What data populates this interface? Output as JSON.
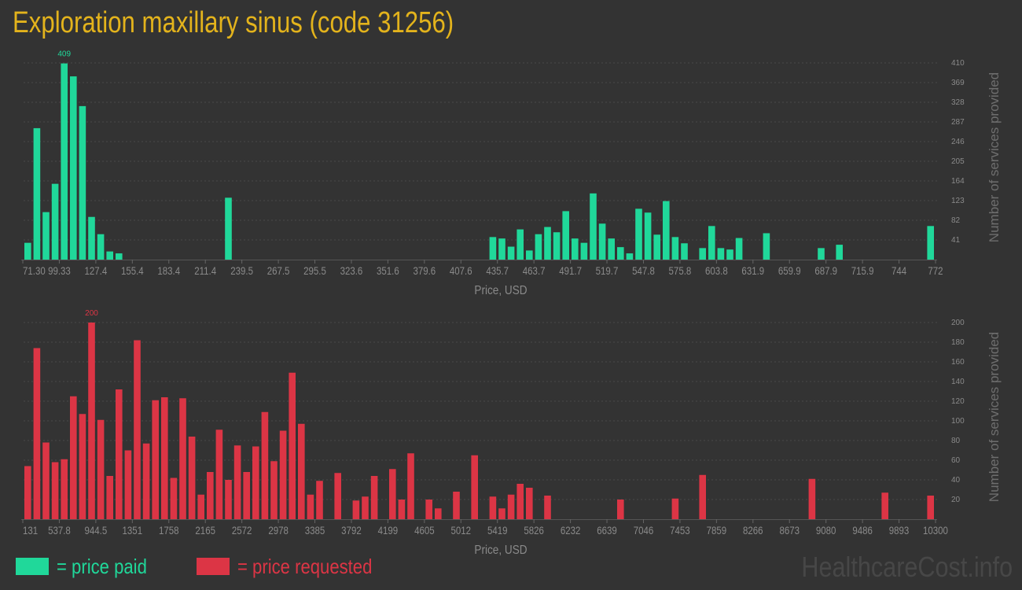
{
  "title": "Exploration maxillary sinus (code 31256)",
  "legend": {
    "paid": "= price paid",
    "requested": "= price requested"
  },
  "watermark": "HealthcareCost.info",
  "colors": {
    "paid": "#20d89a",
    "requested": "#dc3545",
    "title": "#e3b31c",
    "background": "#333333"
  },
  "chart_data": [
    {
      "type": "bar",
      "name": "price paid",
      "xlabel": "Price, USD",
      "ylabel": "Number of services provided",
      "bins": 100,
      "xlim": [
        71.3,
        772
      ],
      "ylim": [
        0,
        410
      ],
      "grid": true,
      "x_tick_labels": [
        "71.30",
        "99.33",
        "127.4",
        "155.4",
        "183.4",
        "211.4",
        "239.5",
        "267.5",
        "295.5",
        "323.6",
        "351.6",
        "379.6",
        "407.6",
        "435.7",
        "463.7",
        "491.7",
        "519.7",
        "547.8",
        "575.8",
        "603.8",
        "631.9",
        "659.9",
        "687.9",
        "715.9",
        "744",
        "772"
      ],
      "y_tick_labels": [
        "41",
        "82",
        "123",
        "164",
        "205",
        "246",
        "287",
        "328",
        "369",
        "410"
      ],
      "max_label": "409",
      "values": {
        "0": 35,
        "1": 274,
        "2": 99,
        "3": 158,
        "4": 409,
        "5": 382,
        "6": 320,
        "7": 89,
        "8": 53,
        "9": 17,
        "10": 13,
        "22": 129,
        "51": 47,
        "52": 44,
        "53": 27,
        "54": 63,
        "55": 19,
        "56": 53,
        "57": 68,
        "58": 57,
        "59": 101,
        "60": 44,
        "61": 35,
        "62": 138,
        "63": 75,
        "64": 44,
        "65": 26,
        "66": 13,
        "67": 106,
        "68": 98,
        "69": 52,
        "70": 122,
        "71": 47,
        "72": 34,
        "74": 24,
        "75": 70,
        "76": 24,
        "77": 21,
        "78": 45,
        "81": 55,
        "87": 24,
        "89": 31,
        "99": 70
      }
    },
    {
      "type": "bar",
      "name": "price requested",
      "xlabel": "Price, USD",
      "ylabel": "Number of services provided",
      "bins": 100,
      "xlim": [
        131,
        10300
      ],
      "ylim": [
        0,
        200
      ],
      "grid": true,
      "x_tick_labels": [
        "131",
        "537.8",
        "944.5",
        "1351",
        "1758",
        "2165",
        "2572",
        "2978",
        "3385",
        "3792",
        "4199",
        "4605",
        "5012",
        "5419",
        "5826",
        "6232",
        "6639",
        "7046",
        "7453",
        "7859",
        "8266",
        "8673",
        "9080",
        "9486",
        "9893",
        "10300"
      ],
      "y_tick_labels": [
        "20",
        "40",
        "60",
        "80",
        "100",
        "120",
        "140",
        "160",
        "180",
        "200"
      ],
      "max_label": "200",
      "values": {
        "0": 54,
        "1": 174,
        "2": 78,
        "3": 58,
        "4": 61,
        "5": 125,
        "6": 107,
        "7": 200,
        "8": 101,
        "9": 44,
        "10": 132,
        "11": 70,
        "12": 182,
        "13": 77,
        "14": 121,
        "15": 124,
        "16": 42,
        "17": 123,
        "18": 84,
        "19": 25,
        "20": 48,
        "21": 91,
        "22": 40,
        "23": 75,
        "24": 48,
        "25": 74,
        "26": 109,
        "27": 59,
        "28": 90,
        "29": 149,
        "30": 97,
        "31": 25,
        "32": 39,
        "34": 47,
        "36": 19,
        "37": 23,
        "38": 44,
        "40": 51,
        "41": 20,
        "42": 67,
        "44": 20,
        "45": 11,
        "47": 28,
        "49": 65,
        "51": 23,
        "52": 11,
        "53": 25,
        "54": 36,
        "55": 32,
        "57": 24,
        "65": 20,
        "71": 21,
        "74": 45,
        "86": 41,
        "94": 27,
        "99": 24
      }
    }
  ]
}
